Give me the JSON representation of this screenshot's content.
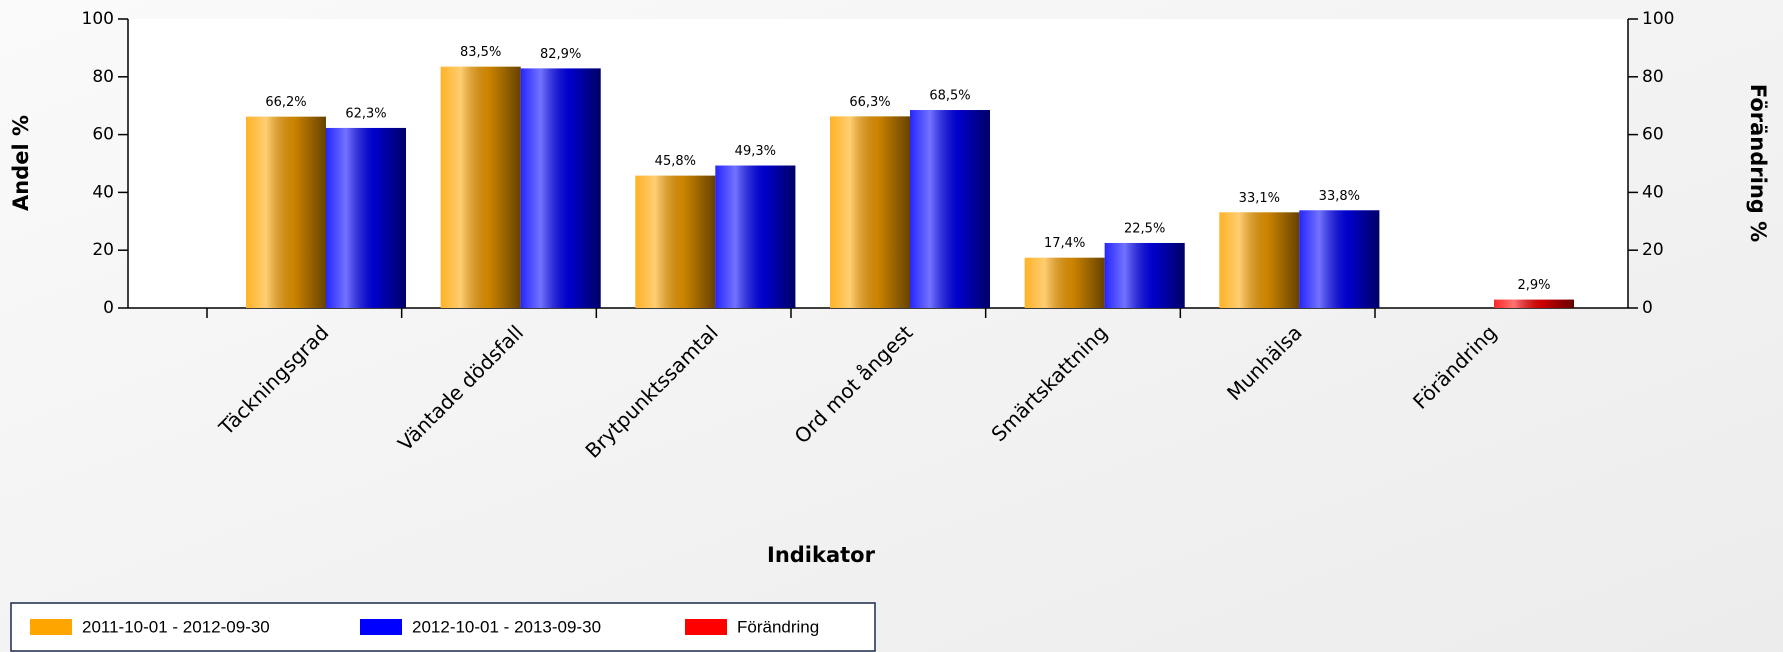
{
  "chart_data": {
    "type": "bar",
    "x_label": "Indikator",
    "y_label": "Andel %",
    "y2_label": "Förändring %",
    "categories": [
      "Täckningsgrad",
      "Väntade dödsfall",
      "Brytpunktssamtal",
      "Ord mot ångest",
      "Smärtskattning",
      "Munhälsa",
      "Förändring"
    ],
    "series": [
      {
        "name": "2011-10-01 - 2012-09-30",
        "color": "#FFA500",
        "values": [
          66.2,
          83.5,
          45.8,
          66.3,
          17.4,
          33.1,
          null
        ],
        "value_labels": [
          "66,2%",
          "83,5%",
          "45,8%",
          "66,3%",
          "17,4%",
          "33,1%",
          null
        ]
      },
      {
        "name": "2012-10-01 - 2013-09-30",
        "color": "#0000FF",
        "values": [
          62.3,
          82.9,
          49.3,
          68.5,
          22.5,
          33.8,
          null
        ],
        "value_labels": [
          "62,3%",
          "82,9%",
          "49,3%",
          "68,5%",
          "22,5%",
          "33,8%",
          null
        ]
      },
      {
        "name": "Förändring",
        "color": "#FF0000",
        "axis": "y2",
        "values": [
          null,
          null,
          null,
          null,
          null,
          null,
          2.9
        ],
        "value_labels": [
          null,
          null,
          null,
          null,
          null,
          null,
          "2,9%"
        ]
      }
    ],
    "ylim": [
      0,
      100
    ],
    "yticks": [
      0,
      20,
      40,
      60,
      80,
      100
    ],
    "y2lim": [
      0,
      100
    ],
    "y2ticks": [
      0,
      20,
      40,
      60,
      80,
      100
    ],
    "legend": "bottom-left"
  }
}
